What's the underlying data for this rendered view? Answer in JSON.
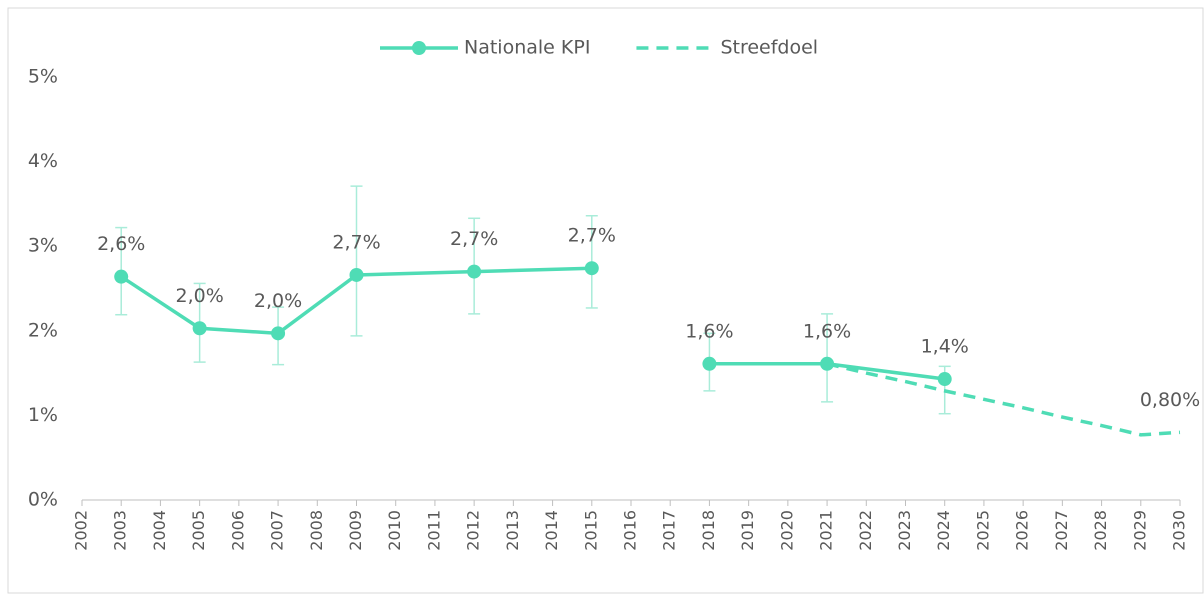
{
  "chart_data": {
    "type": "line",
    "xlim": [
      2002,
      2030
    ],
    "xticks": [
      2002,
      2003,
      2004,
      2005,
      2006,
      2007,
      2008,
      2009,
      2010,
      2011,
      2012,
      2013,
      2014,
      2015,
      2016,
      2017,
      2018,
      2019,
      2020,
      2021,
      2022,
      2023,
      2024,
      2025,
      2026,
      2027,
      2028,
      2029,
      2030
    ],
    "ylim": [
      0,
      5
    ],
    "yticks": [
      {
        "value": 0,
        "label": "0%"
      },
      {
        "value": 1,
        "label": "1%"
      },
      {
        "value": 2,
        "label": "2%"
      },
      {
        "value": 3,
        "label": "3%"
      },
      {
        "value": 4,
        "label": "4%"
      },
      {
        "value": 5,
        "label": "5%"
      }
    ],
    "grid": false,
    "legend": "top",
    "series": [
      {
        "name": "Nationale KPI",
        "color": "#4fdcb5",
        "dashed": false,
        "markers": true,
        "x": [
          2003,
          2005,
          2007,
          2009,
          2012,
          2015,
          2016,
          2018,
          2021,
          2024
        ],
        "values": [
          2.64,
          2.03,
          1.97,
          2.66,
          2.7,
          2.74,
          null,
          1.61,
          1.61,
          1.43
        ],
        "value_labels": [
          "2,6%",
          "2,0%",
          "2,0%",
          "2,7%",
          "2,7%",
          "2,7%",
          null,
          "1,6%",
          "1,6%",
          "1,4%"
        ],
        "lower": [
          2.19,
          1.63,
          1.6,
          1.94,
          2.2,
          2.27,
          null,
          1.29,
          1.16,
          1.02
        ],
        "upper": [
          3.22,
          2.56,
          2.28,
          3.71,
          3.33,
          3.36,
          null,
          1.97,
          2.2,
          1.58
        ]
      },
      {
        "name": "Streefdoel",
        "color": "#4fdcb5",
        "dashed": true,
        "markers": false,
        "x": [
          2021,
          2022,
          2023,
          2024,
          2025,
          2026,
          2027,
          2028,
          2029,
          2030
        ],
        "values": [
          1.61,
          1.5,
          1.4,
          1.29,
          1.19,
          1.09,
          0.98,
          0.88,
          0.77,
          0.8
        ],
        "value_labels": [
          null,
          null,
          null,
          null,
          null,
          null,
          null,
          null,
          null,
          "0,80%"
        ]
      }
    ]
  }
}
